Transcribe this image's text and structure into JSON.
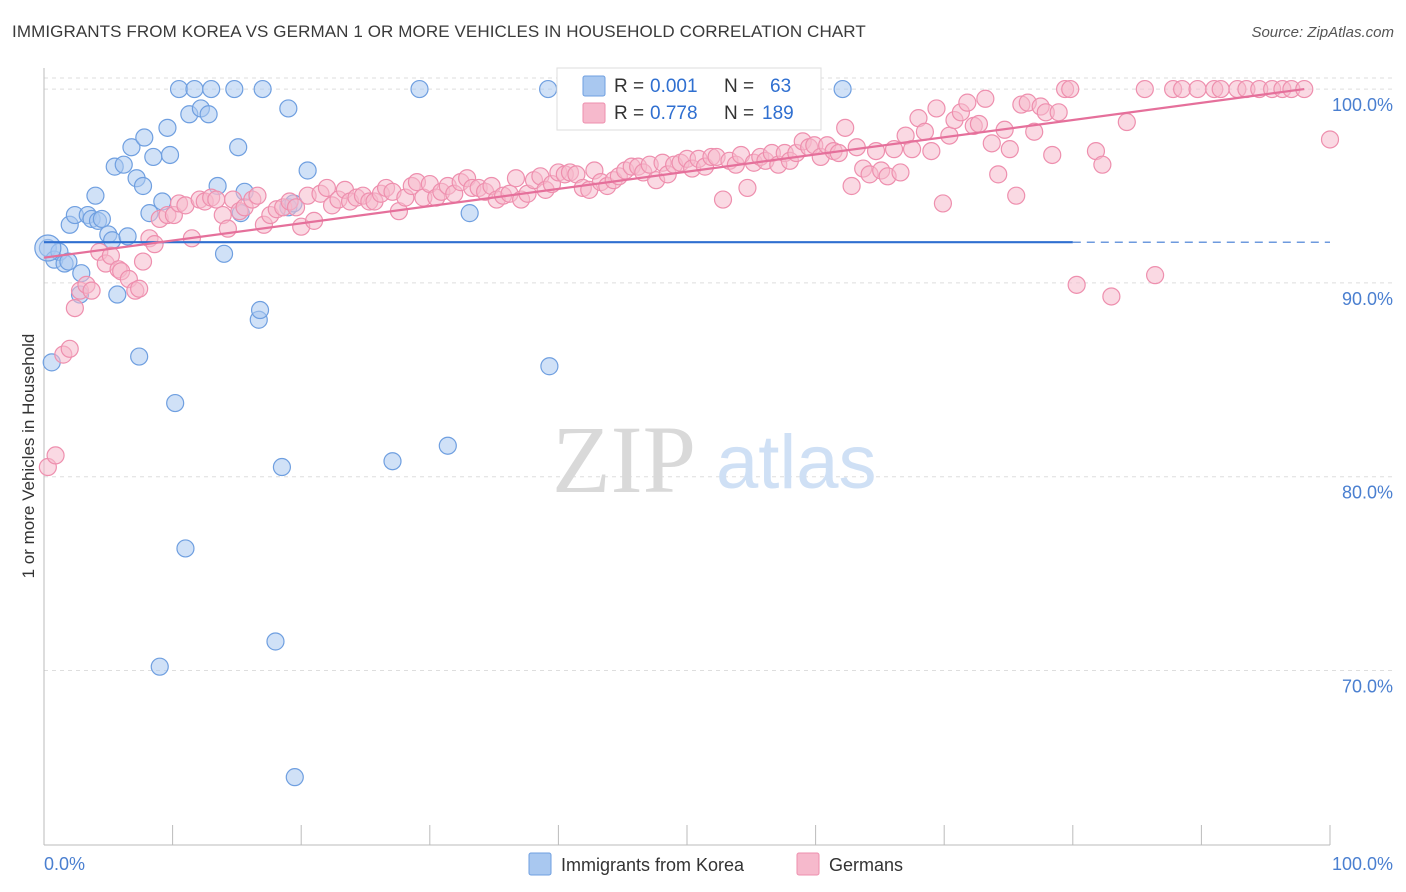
{
  "title": "IMMIGRANTS FROM KOREA VS GERMAN 1 OR MORE VEHICLES IN HOUSEHOLD CORRELATION CHART",
  "source": "Source: ZipAtlas.com",
  "watermark": {
    "zip": "ZIP",
    "atlas": "atlas"
  },
  "colors": {
    "blue_fill": "#a9c8f0",
    "blue_stroke": "#6f9fe0",
    "blue_line": "#2f6fd0",
    "pink_fill": "#f6b9cc",
    "pink_stroke": "#ee8fae",
    "pink_line": "#e5709b",
    "tick_text": "#4a7fd0",
    "grid": "#dedede"
  },
  "legend": {
    "rows": [
      {
        "r_label": "R =",
        "r_value": "0.001",
        "n_label": "N =",
        "n_value": "63"
      },
      {
        "r_label": "R =",
        "r_value": "0.778",
        "n_label": "N =",
        "n_value": "189"
      }
    ]
  },
  "bottom_legend": [
    "Immigrants from Korea",
    "Germans"
  ],
  "chart_data": {
    "type": "scatter",
    "xlabel": "",
    "ylabel": "1 or more Vehicles in Household",
    "xlim": [
      0,
      100
    ],
    "ylim": [
      61,
      101.5
    ],
    "x_tick_labels": [
      "0.0%",
      "100.0%"
    ],
    "y_ticks": [
      70,
      80,
      90,
      100
    ],
    "y_tick_labels": [
      "70.0%",
      "80.0%",
      "90.0%",
      "100.0%"
    ],
    "grid": true,
    "series": [
      {
        "name": "Immigrants from Korea",
        "color": "#a9c8f0",
        "trend": {
          "x": [
            0,
            80
          ],
          "y": [
            92.1,
            92.1
          ],
          "dashed_to": 100
        },
        "points": [
          [
            0.3,
            91.8
          ],
          [
            0.6,
            85.9
          ],
          [
            0.8,
            91.2
          ],
          [
            1.2,
            91.6
          ],
          [
            1.6,
            91.0
          ],
          [
            1.9,
            91.1
          ],
          [
            2.0,
            93.0
          ],
          [
            2.4,
            93.5
          ],
          [
            2.9,
            90.5
          ],
          [
            2.8,
            89.4
          ],
          [
            3.4,
            93.5
          ],
          [
            3.7,
            93.3
          ],
          [
            4.0,
            94.5
          ],
          [
            4.2,
            93.2
          ],
          [
            4.5,
            93.3
          ],
          [
            5.0,
            92.5
          ],
          [
            5.3,
            92.2
          ],
          [
            5.7,
            89.4
          ],
          [
            5.5,
            96.0
          ],
          [
            6.2,
            96.1
          ],
          [
            6.5,
            92.4
          ],
          [
            6.8,
            97.0
          ],
          [
            7.2,
            95.4
          ],
          [
            7.4,
            86.2
          ],
          [
            7.7,
            95.0
          ],
          [
            7.8,
            97.5
          ],
          [
            8.2,
            93.6
          ],
          [
            8.5,
            96.5
          ],
          [
            9.2,
            94.2
          ],
          [
            9.6,
            98.0
          ],
          [
            9.8,
            96.6
          ],
          [
            10.2,
            83.8
          ],
          [
            10.5,
            100.0
          ],
          [
            11.0,
            76.3
          ],
          [
            11.3,
            98.7
          ],
          [
            11.7,
            100.0
          ],
          [
            12.2,
            99.0
          ],
          [
            12.8,
            98.7
          ],
          [
            13.0,
            100.0
          ],
          [
            13.5,
            95.0
          ],
          [
            14.0,
            91.5
          ],
          [
            14.8,
            100.0
          ],
          [
            15.1,
            97.0
          ],
          [
            15.3,
            93.6
          ],
          [
            15.6,
            94.7
          ],
          [
            16.7,
            88.1
          ],
          [
            16.8,
            88.6
          ],
          [
            17.0,
            100.0
          ],
          [
            18.0,
            71.5
          ],
          [
            18.5,
            80.5
          ],
          [
            19.0,
            99.0
          ],
          [
            19.0,
            93.9
          ],
          [
            19.4,
            94.1
          ],
          [
            19.5,
            64.5
          ],
          [
            20.5,
            95.8
          ],
          [
            27.1,
            80.8
          ],
          [
            29.2,
            100.0
          ],
          [
            31.4,
            81.6
          ],
          [
            33.1,
            93.6
          ],
          [
            39.3,
            85.7
          ],
          [
            39.2,
            100.0
          ],
          [
            62.1,
            100.0
          ],
          [
            9.0,
            70.2
          ]
        ]
      },
      {
        "name": "Germans",
        "color": "#f6b9cc",
        "trend": {
          "x": [
            0,
            98
          ],
          "y": [
            91.3,
            100.0
          ]
        },
        "points": [
          [
            0.3,
            80.5
          ],
          [
            0.9,
            81.1
          ],
          [
            1.5,
            86.3
          ],
          [
            2.0,
            86.6
          ],
          [
            2.4,
            88.7
          ],
          [
            2.8,
            89.6
          ],
          [
            3.3,
            89.9
          ],
          [
            3.7,
            89.6
          ],
          [
            4.3,
            91.6
          ],
          [
            4.8,
            91.0
          ],
          [
            5.2,
            91.4
          ],
          [
            5.8,
            90.7
          ],
          [
            6.0,
            90.6
          ],
          [
            6.6,
            90.2
          ],
          [
            7.1,
            89.6
          ],
          [
            7.4,
            89.7
          ],
          [
            7.7,
            91.1
          ],
          [
            8.2,
            92.3
          ],
          [
            8.6,
            92.0
          ],
          [
            9.0,
            93.3
          ],
          [
            9.6,
            93.5
          ],
          [
            10.1,
            93.5
          ],
          [
            10.5,
            94.1
          ],
          [
            11.0,
            94.0
          ],
          [
            11.5,
            92.3
          ],
          [
            12.1,
            94.3
          ],
          [
            12.5,
            94.2
          ],
          [
            13.0,
            94.4
          ],
          [
            13.4,
            94.3
          ],
          [
            13.9,
            93.5
          ],
          [
            14.3,
            92.8
          ],
          [
            14.7,
            94.3
          ],
          [
            15.2,
            93.7
          ],
          [
            15.6,
            93.9
          ],
          [
            16.2,
            94.3
          ],
          [
            16.6,
            94.5
          ],
          [
            17.1,
            93.0
          ],
          [
            17.6,
            93.5
          ],
          [
            18.1,
            93.8
          ],
          [
            18.6,
            93.9
          ],
          [
            19.1,
            94.2
          ],
          [
            19.6,
            93.9
          ],
          [
            20.0,
            92.9
          ],
          [
            20.5,
            94.5
          ],
          [
            21.0,
            93.2
          ],
          [
            21.5,
            94.6
          ],
          [
            22.0,
            94.9
          ],
          [
            22.4,
            94.0
          ],
          [
            22.9,
            94.3
          ],
          [
            23.4,
            94.8
          ],
          [
            23.8,
            94.2
          ],
          [
            24.3,
            94.4
          ],
          [
            24.8,
            94.5
          ],
          [
            25.3,
            94.2
          ],
          [
            25.7,
            94.2
          ],
          [
            26.2,
            94.6
          ],
          [
            26.6,
            94.9
          ],
          [
            27.1,
            94.7
          ],
          [
            27.6,
            93.7
          ],
          [
            28.1,
            94.4
          ],
          [
            28.6,
            95.0
          ],
          [
            29.0,
            95.2
          ],
          [
            29.5,
            94.4
          ],
          [
            30.0,
            95.1
          ],
          [
            30.5,
            94.4
          ],
          [
            30.9,
            94.7
          ],
          [
            31.4,
            95.0
          ],
          [
            31.9,
            94.6
          ],
          [
            32.4,
            95.2
          ],
          [
            32.9,
            95.4
          ],
          [
            33.3,
            94.9
          ],
          [
            33.8,
            94.9
          ],
          [
            34.3,
            94.7
          ],
          [
            34.8,
            95.0
          ],
          [
            35.2,
            94.3
          ],
          [
            35.7,
            94.5
          ],
          [
            36.2,
            94.6
          ],
          [
            36.7,
            95.4
          ],
          [
            37.1,
            94.3
          ],
          [
            37.6,
            94.6
          ],
          [
            38.1,
            95.3
          ],
          [
            38.6,
            95.5
          ],
          [
            39.0,
            94.8
          ],
          [
            39.5,
            95.1
          ],
          [
            40.0,
            95.7
          ],
          [
            40.5,
            95.6
          ],
          [
            40.9,
            95.7
          ],
          [
            41.4,
            95.6
          ],
          [
            41.9,
            94.9
          ],
          [
            42.4,
            94.8
          ],
          [
            42.8,
            95.8
          ],
          [
            43.3,
            95.2
          ],
          [
            43.8,
            95.0
          ],
          [
            44.3,
            95.3
          ],
          [
            44.7,
            95.5
          ],
          [
            45.2,
            95.8
          ],
          [
            45.7,
            96.0
          ],
          [
            46.2,
            96.0
          ],
          [
            46.6,
            95.7
          ],
          [
            47.1,
            96.1
          ],
          [
            47.6,
            95.3
          ],
          [
            48.1,
            96.2
          ],
          [
            48.5,
            95.6
          ],
          [
            49.0,
            96.1
          ],
          [
            49.5,
            96.2
          ],
          [
            50.0,
            96.4
          ],
          [
            50.4,
            95.9
          ],
          [
            50.9,
            96.4
          ],
          [
            51.4,
            96.0
          ],
          [
            51.9,
            96.5
          ],
          [
            52.3,
            96.5
          ],
          [
            52.8,
            94.3
          ],
          [
            53.3,
            96.3
          ],
          [
            53.8,
            96.1
          ],
          [
            54.2,
            96.6
          ],
          [
            54.7,
            94.9
          ],
          [
            55.2,
            96.2
          ],
          [
            55.7,
            96.5
          ],
          [
            56.1,
            96.3
          ],
          [
            56.6,
            96.7
          ],
          [
            57.1,
            96.1
          ],
          [
            57.6,
            96.7
          ],
          [
            58.0,
            96.3
          ],
          [
            58.5,
            96.7
          ],
          [
            59.0,
            97.3
          ],
          [
            59.5,
            97.0
          ],
          [
            59.9,
            97.1
          ],
          [
            60.4,
            96.5
          ],
          [
            60.9,
            97.1
          ],
          [
            61.4,
            96.8
          ],
          [
            61.8,
            96.7
          ],
          [
            62.3,
            98.0
          ],
          [
            62.8,
            95.0
          ],
          [
            63.2,
            97.0
          ],
          [
            63.7,
            95.9
          ],
          [
            64.2,
            95.6
          ],
          [
            64.7,
            96.8
          ],
          [
            65.1,
            95.8
          ],
          [
            65.6,
            95.5
          ],
          [
            66.1,
            96.9
          ],
          [
            66.6,
            95.7
          ],
          [
            67.0,
            97.6
          ],
          [
            67.5,
            96.9
          ],
          [
            68.0,
            98.5
          ],
          [
            68.5,
            97.8
          ],
          [
            69.0,
            96.8
          ],
          [
            69.4,
            99.0
          ],
          [
            69.9,
            94.1
          ],
          [
            70.4,
            97.6
          ],
          [
            70.8,
            98.4
          ],
          [
            71.3,
            98.8
          ],
          [
            71.8,
            99.3
          ],
          [
            72.3,
            98.1
          ],
          [
            72.7,
            98.2
          ],
          [
            73.2,
            99.5
          ],
          [
            73.7,
            97.2
          ],
          [
            74.2,
            95.6
          ],
          [
            74.7,
            97.9
          ],
          [
            75.1,
            96.9
          ],
          [
            75.6,
            94.5
          ],
          [
            76.0,
            99.2
          ],
          [
            76.5,
            99.3
          ],
          [
            77.0,
            97.8
          ],
          [
            77.5,
            99.1
          ],
          [
            77.9,
            98.8
          ],
          [
            78.4,
            96.6
          ],
          [
            78.9,
            98.8
          ],
          [
            79.4,
            100.0
          ],
          [
            79.8,
            100.0
          ],
          [
            80.3,
            89.9
          ],
          [
            81.8,
            96.8
          ],
          [
            82.3,
            96.1
          ],
          [
            83.0,
            89.3
          ],
          [
            84.2,
            98.3
          ],
          [
            85.6,
            100.0
          ],
          [
            86.4,
            90.4
          ],
          [
            87.8,
            100.0
          ],
          [
            88.5,
            100.0
          ],
          [
            89.7,
            100.0
          ],
          [
            91.0,
            100.0
          ],
          [
            91.5,
            100.0
          ],
          [
            92.8,
            100.0
          ],
          [
            93.5,
            100.0
          ],
          [
            94.5,
            100.0
          ],
          [
            95.5,
            100.0
          ],
          [
            96.3,
            100.0
          ],
          [
            97.0,
            100.0
          ],
          [
            98.0,
            100.0
          ],
          [
            100.0,
            97.4
          ]
        ]
      }
    ]
  }
}
